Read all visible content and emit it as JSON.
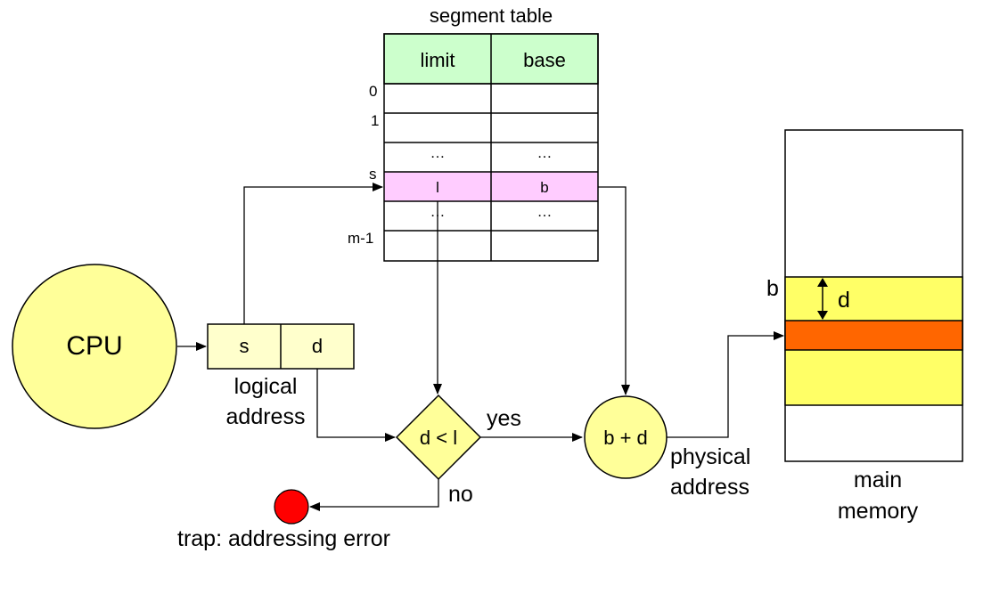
{
  "segment_table": {
    "title": "segment table",
    "header": {
      "limit": "limit",
      "base": "base"
    },
    "row_labels": [
      "0",
      "1",
      "s",
      "m-1"
    ],
    "ellipsis": "…",
    "selected_row": {
      "limit": "l",
      "base": "b"
    }
  },
  "cpu": {
    "label": "CPU"
  },
  "logical_address": {
    "s": "s",
    "d": "d",
    "caption_line1": "logical",
    "caption_line2": "address"
  },
  "comparator": {
    "label": "d < l",
    "yes": "yes",
    "no": "no"
  },
  "adder": {
    "label": "b + d"
  },
  "physical_address": {
    "line1": "physical",
    "line2": "address"
  },
  "trap": {
    "label": "trap: addressing error"
  },
  "memory": {
    "b_label": "b",
    "d_label": "d",
    "caption_line1": "main",
    "caption_line2": "memory"
  },
  "colors": {
    "table_header": "#ccffcc",
    "selected_row": "#ffccff",
    "cpu_fill": "#ffff99",
    "address_fill": "#ffffcc",
    "memory_segment": "#ffff66",
    "memory_target": "#ff6600",
    "trap": "#ff0000"
  }
}
